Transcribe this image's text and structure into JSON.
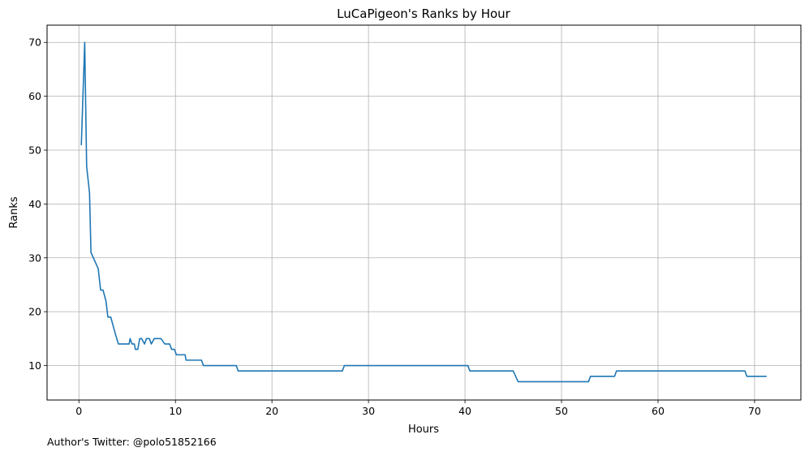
{
  "chart_data": {
    "type": "line",
    "title": "LuCaPigeon's Ranks by Hour",
    "xlabel": "Hours",
    "ylabel": "Ranks",
    "xlim": [
      -3.3,
      74.8
    ],
    "ylim": [
      3.6,
      73.2
    ],
    "xticks": [
      0,
      10,
      20,
      30,
      40,
      50,
      60,
      70
    ],
    "yticks": [
      10,
      20,
      30,
      40,
      50,
      60,
      70
    ],
    "grid": true,
    "series": [
      {
        "color": "#1f77b4",
        "x": [
          0.25,
          0.6,
          0.8,
          1.1,
          1.25,
          2.0,
          2.25,
          2.5,
          2.8,
          3.0,
          3.3,
          3.6,
          4.0,
          4.1,
          5.2,
          5.3,
          5.5,
          5.75,
          5.85,
          6.1,
          6.3,
          6.5,
          6.8,
          7.0,
          7.3,
          7.5,
          7.8,
          8.0,
          8.5,
          8.9,
          9.4,
          9.6,
          9.9,
          10.1,
          10.2,
          11.0,
          11.1,
          12.7,
          12.9,
          16.3,
          16.5,
          27.3,
          27.5,
          40.3,
          40.5,
          45.0,
          45.5,
          52.8,
          53.0,
          55.5,
          55.7,
          69.0,
          69.2,
          71.2
        ],
        "y": [
          51,
          70,
          47,
          42,
          31,
          28,
          24,
          24,
          22,
          19,
          19,
          17,
          14.5,
          14,
          14,
          15,
          14,
          14,
          13,
          13,
          15,
          15,
          14,
          15,
          15,
          14,
          15,
          15,
          15,
          14,
          14,
          13,
          13,
          12,
          12,
          12,
          11,
          11,
          10,
          10,
          9,
          9,
          10,
          10,
          9,
          9,
          7,
          7,
          8,
          8,
          9,
          9,
          8,
          8
        ]
      }
    ]
  },
  "footnote": "Author's Twitter: @polo51852166"
}
